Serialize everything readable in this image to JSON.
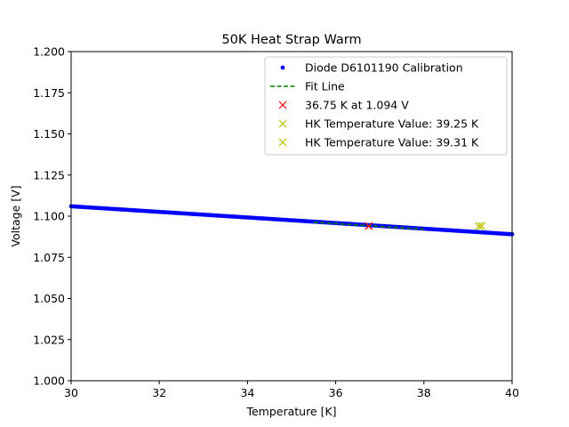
{
  "chart_data": {
    "type": "scatter",
    "title": "50K Heat Strap Warm",
    "xlabel": "Temperature [K]",
    "ylabel": "Voltage [V]",
    "xlim": [
      30,
      40
    ],
    "ylim": [
      1.0,
      1.2
    ],
    "xticks": [
      30,
      32,
      34,
      36,
      38,
      40
    ],
    "xtick_labels": [
      "30",
      "32",
      "34",
      "36",
      "38",
      "40"
    ],
    "yticks": [
      1.0,
      1.025,
      1.05,
      1.075,
      1.1,
      1.125,
      1.15,
      1.175,
      1.2
    ],
    "ytick_labels": [
      "1.000",
      "1.025",
      "1.050",
      "1.075",
      "1.100",
      "1.125",
      "1.150",
      "1.175",
      "1.200"
    ],
    "grid": false,
    "legend_position": "top-right",
    "series": [
      {
        "name": "Diode D6101190 Calibration",
        "kind": "points",
        "color": "#0000ff",
        "x_start": 30.0,
        "x_end": 40.0,
        "x_step": 0.05,
        "y_at_start": 1.106,
        "y_at_end": 1.089
      },
      {
        "name": "Fit Line",
        "kind": "dashed-line",
        "color": "#008000",
        "x": [
          35.5,
          38.0
        ],
        "y": [
          1.0963,
          1.0921
        ]
      },
      {
        "name": "36.75 K at 1.094 V",
        "kind": "x-marker",
        "color": "#ff0000",
        "x": [
          36.75
        ],
        "y": [
          1.094
        ]
      },
      {
        "name": "HK Temperature Value: 39.25 K",
        "kind": "x-marker",
        "color": "#bfbf00",
        "x": [
          39.25
        ],
        "y": [
          1.094
        ]
      },
      {
        "name": "HK Temperature Value: 39.31 K",
        "kind": "x-marker",
        "color": "#bfbf00",
        "x": [
          39.31
        ],
        "y": [
          1.094
        ]
      }
    ]
  }
}
